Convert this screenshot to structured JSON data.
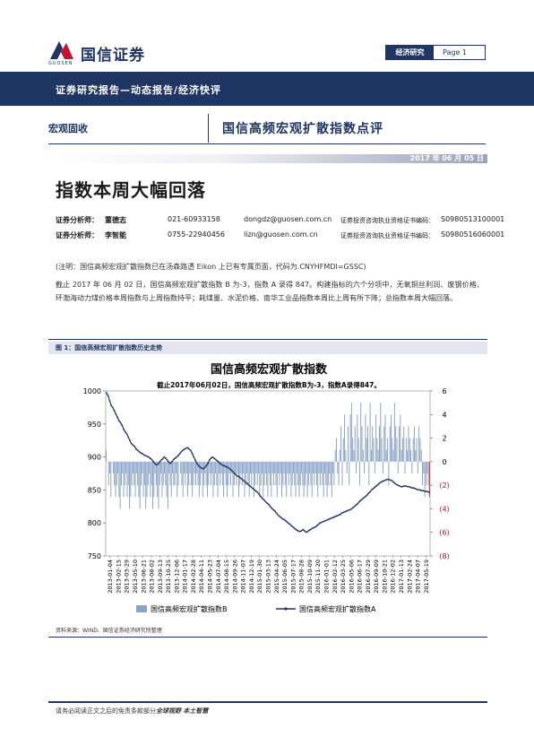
{
  "header": {
    "logo_text": "国信证券",
    "logo_sub": "GUOSEN",
    "report_type": "经济研究",
    "page_label": "Page 1"
  },
  "band": {
    "text": "证券研究报告—动态报告/经济快评"
  },
  "category": {
    "left": "宏观固收",
    "title": "国信高频宏观扩散指数点评"
  },
  "date": "2017 年 06 月 05 日",
  "main_title": "指数本周大幅回落",
  "analysts": [
    {
      "role": "证券分析师：",
      "name": "董德志",
      "phone": "021-60933158",
      "email": "dongdz@guosen.com.cn",
      "cert_label": "证券投资咨询执业资格证书编码：",
      "cert": "S0980513100001"
    },
    {
      "role": "证券分析师：",
      "name": "李智能",
      "phone": "0755-22940456",
      "email": "lizn@guosen.com.cn",
      "cert_label": "证券投资咨询执业资格证书编码：",
      "cert": "S0980516060001"
    }
  ],
  "note": "(注明：国信高频宏观扩散指数已在汤森路透 Eikon 上已有专属页面，代码为.CNYHFMDI=GSSC)",
  "paragraph": "截止 2017 年 06 月 02 日，国信高频宏观扩散指数 B 为-3，指数 A 录得 847。构建指标的六个分项中，无氧铜丝利润、废钢价格、环渤海动力煤价格本周指数与上周指数持平；耗煤量、水泥价格、南华工业品指数本周比上周有所下降；总指数本周大幅回落。",
  "figure": {
    "caption": "图 1：国信高频宏观扩散指数历史走势",
    "source": "资料来源：WIND、国信证券经济研究所整理"
  },
  "footer": {
    "text_prefix": "请务必阅读正文之后的免责条款部分",
    "text_bold": "全球视野  本土智慧"
  },
  "chart_data": {
    "type": "bar+line",
    "title": "国信高频宏观扩散指数",
    "annotation": "截止2017年06月02日，国信高频宏观扩散指数B为-3，指数A录得847。",
    "left_axis": {
      "min": 750,
      "max": 1000,
      "ticks": [
        "750",
        "800",
        "850",
        "900",
        "950",
        "1000"
      ]
    },
    "right_axis": {
      "min": -8,
      "max": 6,
      "ticks": [
        "6",
        "4",
        "2",
        "0",
        "(2)",
        "(4)",
        "(6)",
        "(8)"
      ]
    },
    "x_tick_labels": [
      "2013-01-04",
      "2013-02-15",
      "2013-03-29",
      "2013-05-10",
      "2013-06-21",
      "2013-08-02",
      "2013-09-13",
      "2013-10-25",
      "2013-12-06",
      "2014-01-17",
      "2014-02-28",
      "2014-04-11",
      "2014-05-23",
      "2014-07-04",
      "2014-08-15",
      "2014-09-26",
      "2014-11-07",
      "2014-12-19",
      "2015-01-30",
      "2015-03-13",
      "2015-04-24",
      "2015-06-05",
      "2015-07-17",
      "2015-08-28",
      "2015-10-09",
      "2015-11-20",
      "2016-01-01",
      "2016-02-12",
      "2016-03-25",
      "2016-05-06",
      "2016-06-17",
      "2016-07-29",
      "2016-09-09",
      "2016-10-21",
      "2016-12-02",
      "2017-01-13",
      "2017-02-24",
      "2017-04-07",
      "2017-05-19"
    ],
    "series": [
      {
        "name": "国信高频宏观扩散指数B",
        "axis": "right",
        "color": "#8ba3c9",
        "values": [
          1,
          0,
          -2,
          -1,
          -3,
          0,
          -1,
          -2,
          -3,
          -2,
          -1,
          -3,
          -4,
          -2,
          -1,
          -3,
          -2,
          -1,
          -3,
          -2,
          -4,
          -3,
          -2,
          -1,
          -2,
          -3,
          -1,
          -2,
          -3,
          -4,
          -2,
          -1,
          -3,
          -2,
          -4,
          -3,
          -2,
          -1,
          -3,
          -2,
          -4,
          -3,
          -1,
          -2,
          -3,
          -4,
          -2,
          -1,
          -3,
          -2,
          -1,
          -2,
          -3,
          -4,
          -1,
          -2,
          -3,
          -1,
          -2,
          -2,
          -1,
          -3,
          -2,
          0,
          -1,
          -2,
          -3,
          -1,
          -2,
          -1,
          -3,
          -2,
          -1,
          -2,
          -3,
          -2,
          -1,
          -2,
          -1,
          -2,
          -3,
          -2,
          -1,
          -3,
          -2,
          -1,
          -2,
          -3,
          -2,
          -1,
          -2,
          -1,
          -3,
          -2,
          -1,
          -2,
          -3,
          -1,
          -2,
          -1,
          -2,
          -3,
          -1,
          -2,
          -3,
          -2,
          -1,
          -2,
          -1,
          -3,
          -2,
          -1,
          -2,
          -1,
          -3,
          -2,
          -1,
          -2,
          -1,
          -3,
          -2,
          -1,
          -2,
          -3,
          -1,
          -2,
          -1,
          -3,
          -2,
          -1,
          -2,
          -1,
          -3,
          -2,
          -1,
          -3,
          -2,
          -1,
          -2,
          -3,
          -1,
          -2,
          -3,
          -1,
          -2,
          -1,
          -2,
          -3,
          -1,
          -2,
          -1,
          -3,
          -2,
          -1,
          -2,
          -3,
          -1,
          -2,
          -1,
          -3,
          -2,
          -1,
          -2,
          -3,
          -1,
          -2,
          -3,
          -2,
          -1,
          -2,
          -3,
          -2,
          -1,
          -3,
          -2,
          -1,
          -2,
          -3,
          -1,
          -2,
          -1,
          -2,
          -3,
          -1,
          -2,
          -1,
          -2,
          -3,
          -1,
          -2,
          -3,
          -2,
          -1,
          -2,
          -3,
          -1,
          -2,
          1,
          2,
          -1,
          -2,
          1,
          3,
          -2,
          2,
          4,
          1,
          -1,
          3,
          -2,
          4,
          5,
          2,
          1,
          3,
          -1,
          4,
          2,
          -2,
          5,
          3,
          1,
          -1,
          4,
          2,
          3,
          -2,
          5,
          1,
          3,
          2,
          -1,
          4,
          2,
          1,
          3,
          5,
          2,
          -1,
          3,
          4,
          1,
          2,
          -2,
          3,
          4,
          2,
          1,
          5,
          3,
          2,
          -1,
          3,
          4,
          1,
          2,
          3,
          -1,
          2,
          1,
          3,
          2,
          1,
          -1,
          2,
          3,
          1,
          2,
          -1,
          3,
          2,
          1,
          -2,
          -1,
          -3,
          -2,
          -1,
          -2,
          -3
        ]
      },
      {
        "name": "国信高频宏观扩散指数A",
        "axis": "left",
        "color": "#1f3563",
        "values": [
          997,
          993,
          985,
          978,
          975,
          970,
          965,
          960,
          955,
          952,
          948,
          942,
          938,
          935,
          930,
          925,
          920,
          918,
          916,
          912,
          910,
          908,
          906,
          905,
          903,
          902,
          901,
          900,
          898,
          896,
          893,
          890,
          888,
          889,
          892,
          895,
          897,
          900,
          898,
          895,
          892,
          890,
          893,
          896,
          898,
          900,
          902,
          905,
          908,
          910,
          912,
          913,
          914,
          912,
          910,
          905,
          900,
          895,
          890,
          887,
          885,
          883,
          882,
          884,
          887,
          890,
          895,
          898,
          900,
          898,
          896,
          894,
          892,
          890,
          888,
          887,
          886,
          885,
          884,
          882,
          880,
          878,
          875,
          873,
          871,
          870,
          868,
          866,
          864,
          862,
          860,
          858,
          856,
          854,
          852,
          850,
          848,
          846,
          843,
          840,
          837,
          835,
          832,
          830,
          828,
          825,
          822,
          820,
          818,
          815,
          812,
          810,
          808,
          806,
          805,
          803,
          801,
          799,
          797,
          795,
          793,
          791,
          789,
          788,
          787,
          788,
          790,
          788,
          786,
          787,
          789,
          790,
          792,
          793,
          794,
          796,
          798,
          800,
          801,
          802,
          803,
          804,
          805,
          806,
          807,
          808,
          809,
          810,
          811,
          812,
          813,
          815,
          816,
          817,
          818,
          819,
          820,
          821,
          823,
          825,
          827,
          829,
          832,
          834,
          836,
          838,
          840,
          842,
          845,
          847,
          850,
          852,
          854,
          856,
          858,
          860,
          862,
          863,
          864,
          865,
          866,
          866,
          865,
          864,
          862,
          860,
          858,
          857,
          856,
          855,
          855,
          856,
          856,
          855,
          855,
          854,
          853,
          853,
          852,
          851,
          850,
          850,
          849,
          849,
          848,
          848,
          847,
          847
        ]
      }
    ]
  }
}
